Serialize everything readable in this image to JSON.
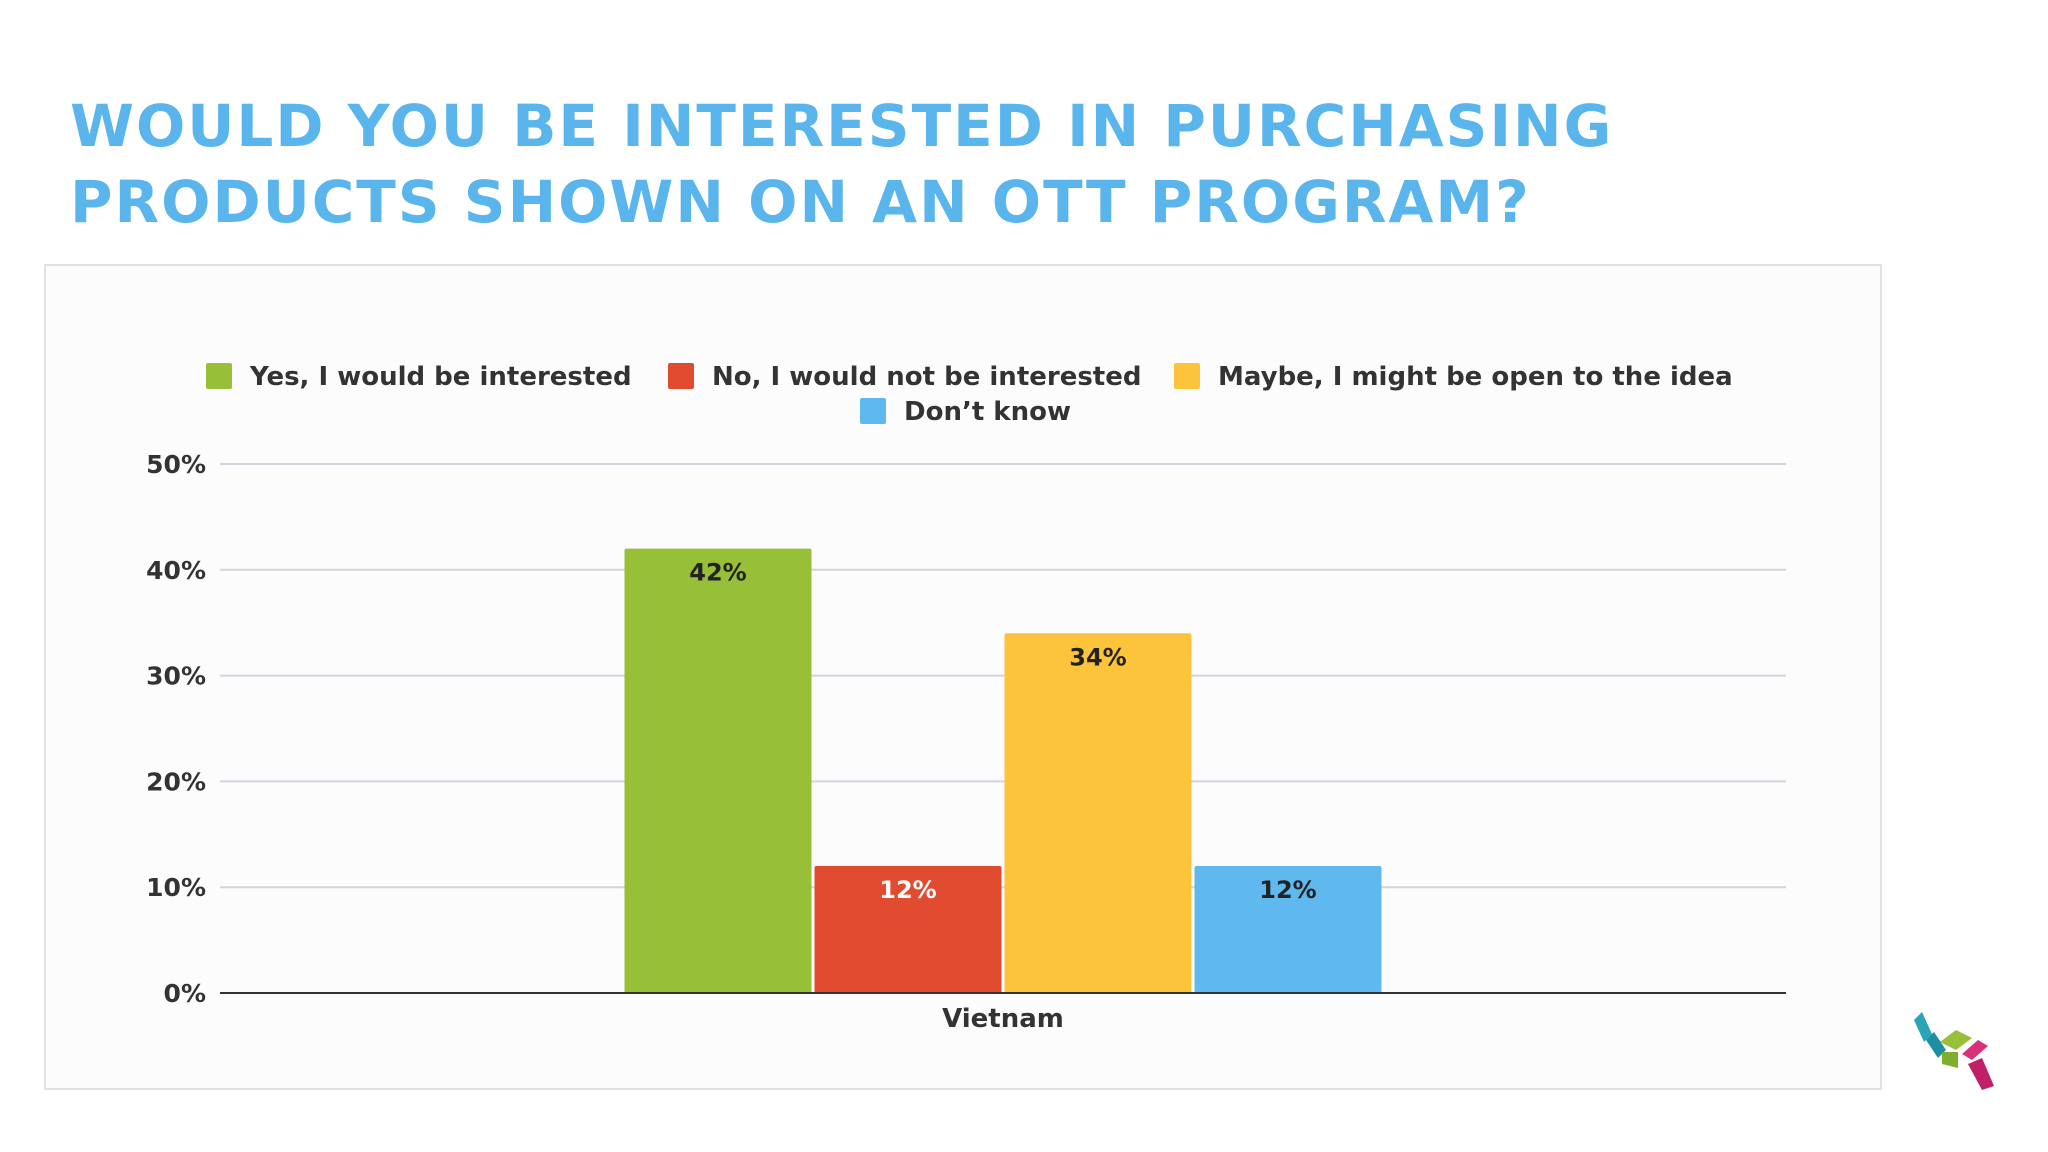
{
  "title_lines": [
    "WOULD YOU BE INTERESTED IN PURCHASING",
    "PRODUCTS SHOWN ON AN OTT PROGRAM?"
  ],
  "chart_data": {
    "type": "bar",
    "categories": [
      "Vietnam"
    ],
    "series": [
      {
        "name": "Yes, I would be interested",
        "values": [
          42
        ],
        "label": "42%",
        "color": "#97bf38",
        "label_color": "#222222"
      },
      {
        "name": "No, I would not be interested",
        "values": [
          12
        ],
        "label": "12%",
        "color": "#e14b30",
        "label_color": "#ffffff"
      },
      {
        "name": "Maybe, I might be open to the idea",
        "values": [
          34
        ],
        "label": "34%",
        "color": "#fcc43a",
        "label_color": "#222222"
      },
      {
        "name": "Don’t know",
        "values": [
          12
        ],
        "label": "12%",
        "color": "#60b9ee",
        "label_color": "#222222"
      }
    ],
    "ylim": [
      0,
      50
    ],
    "yticks": [
      "0%",
      "10%",
      "20%",
      "30%",
      "40%",
      "50%"
    ],
    "legend_position": "top",
    "grid": true
  },
  "logo": {
    "name": "cube-logo-icon",
    "colors": [
      "#2aa5b8",
      "#97bf38",
      "#d9307c"
    ]
  }
}
